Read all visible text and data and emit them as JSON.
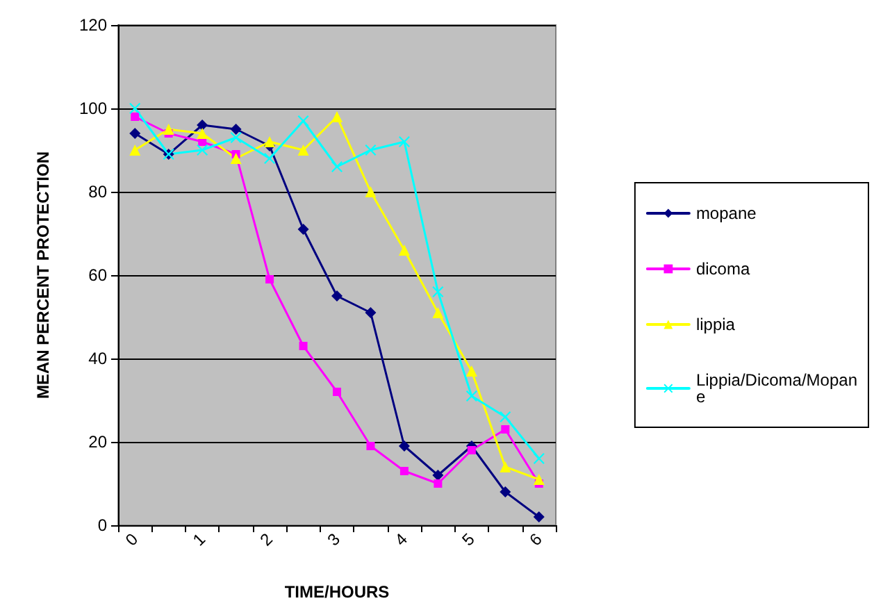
{
  "chart_data": {
    "type": "line",
    "xlabel": "TIME/HOURS",
    "ylabel": "MEAN PERCENT PROTECTION",
    "categories": [
      "0",
      null,
      "1",
      null,
      "2",
      null,
      "3",
      null,
      "4",
      null,
      "5",
      null,
      "6"
    ],
    "series": [
      {
        "name": "mopane",
        "color": "#000080",
        "marker": "diamond",
        "values": [
          94,
          89,
          96,
          95,
          91,
          71,
          55,
          51,
          19,
          12,
          19,
          8,
          2
        ]
      },
      {
        "name": "dicoma",
        "color": "#ff00ff",
        "marker": "square",
        "values": [
          98,
          94,
          92,
          89,
          59,
          43,
          32,
          19,
          13,
          10,
          18,
          23,
          10
        ]
      },
      {
        "name": "lippia",
        "color": "#ffff00",
        "marker": "triangle",
        "values": [
          90,
          95,
          94,
          88,
          92,
          90,
          98,
          80,
          66,
          51,
          37,
          14,
          11
        ]
      },
      {
        "name": "Lippia/Dicoma/Mopane",
        "color": "#00ffff",
        "marker": "cross",
        "values": [
          100,
          89,
          90,
          93,
          88,
          97,
          86,
          90,
          92,
          56,
          31,
          26,
          16
        ]
      }
    ],
    "ylim": [
      0,
      120
    ],
    "yticks": [
      0,
      20,
      40,
      60,
      80,
      100,
      120
    ],
    "grid": "y",
    "legend": "right"
  }
}
